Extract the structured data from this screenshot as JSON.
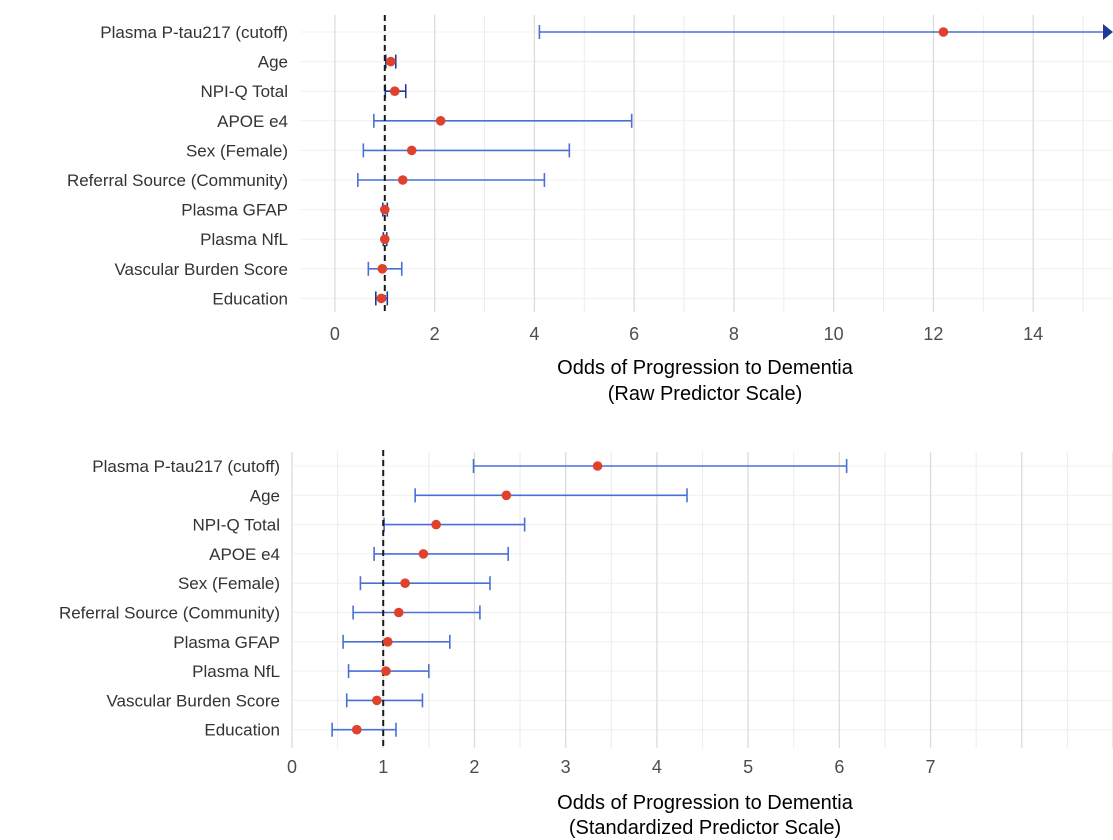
{
  "colors": {
    "point": "#e0412c",
    "errorbar": "#4a6fd6",
    "errorbar_dark": "#1f3a99",
    "arrow": "#1f3a99",
    "reference_line": "#1a1a1a"
  },
  "chart_data": [
    {
      "type": "forest",
      "xlabel": "Odds of Progression to Dementia",
      "xlabel2": "(Raw Predictor Scale)",
      "ylabel": "",
      "xlim": [
        -0.7,
        15.6
      ],
      "xticks": [
        0,
        2,
        4,
        6,
        8,
        10,
        12,
        14
      ],
      "reference_x": 1,
      "grid": true,
      "categories": [
        "Plasma P-tau217 (cutoff)",
        "Age",
        "NPI-Q Total",
        "APOE e4",
        "Sex (Female)",
        "Referral Source (Community)",
        "Plasma GFAP",
        "Plasma NfL",
        "Vascular Burden Score",
        "Education"
      ],
      "estimates": [
        12.2,
        1.12,
        1.2,
        2.12,
        1.54,
        1.36,
        1.0,
        1.0,
        0.95,
        0.93
      ],
      "lower": [
        4.1,
        1.02,
        1.01,
        0.78,
        0.57,
        0.46,
        0.96,
        0.97,
        0.67,
        0.82
      ],
      "upper": [
        15.6,
        1.22,
        1.42,
        5.95,
        4.7,
        4.2,
        1.05,
        1.04,
        1.34,
        1.05
      ],
      "truncated_upper": [
        true,
        false,
        false,
        false,
        false,
        false,
        false,
        false,
        false,
        false
      ]
    },
    {
      "type": "forest",
      "xlabel": "Odds of Progression to Dementia",
      "xlabel2": "(Standardized Predictor Scale)",
      "ylabel": "",
      "xlim": [
        0,
        9
      ],
      "xticks": [
        0,
        1,
        2,
        3,
        4,
        5,
        6,
        7
      ],
      "reference_x": 1,
      "grid": true,
      "categories": [
        "Plasma P-tau217 (cutoff)",
        "Age",
        "NPI-Q Total",
        "APOE e4",
        "Sex (Female)",
        "Referral Source (Community)",
        "Plasma GFAP",
        "Plasma NfL",
        "Vascular Burden Score",
        "Education"
      ],
      "estimates": [
        3.35,
        2.35,
        1.58,
        1.44,
        1.24,
        1.17,
        1.05,
        1.03,
        0.93,
        0.71
      ],
      "lower": [
        1.99,
        1.35,
        1.01,
        0.9,
        0.75,
        0.67,
        0.56,
        0.62,
        0.6,
        0.44
      ],
      "upper": [
        6.08,
        4.33,
        2.55,
        2.37,
        2.17,
        2.06,
        1.73,
        1.5,
        1.43,
        1.14
      ],
      "truncated_upper": [
        false,
        false,
        false,
        false,
        false,
        false,
        false,
        false,
        false,
        false
      ]
    }
  ]
}
